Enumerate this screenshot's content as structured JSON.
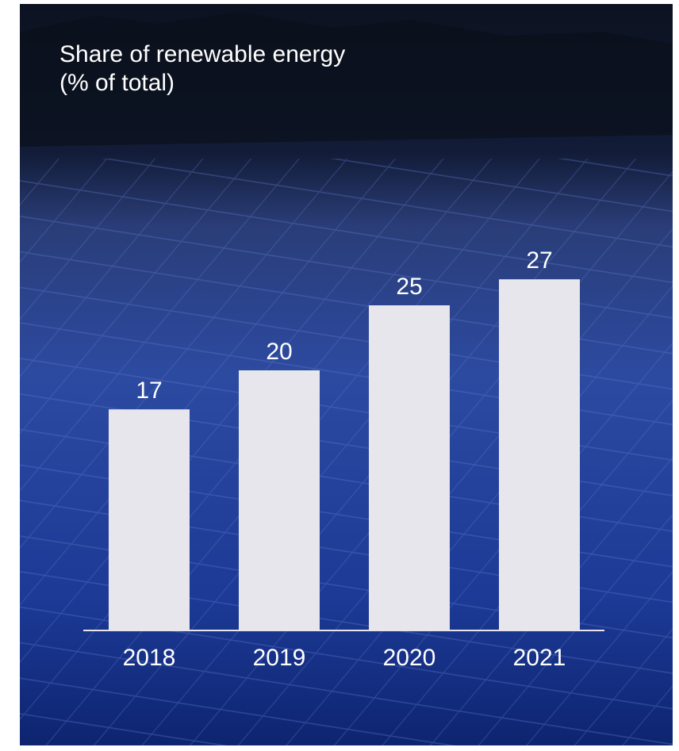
{
  "chart_data": {
    "type": "bar",
    "title": "Share of renewable energy",
    "subtitle": "(% of total)",
    "categories": [
      "2018",
      "2019",
      "2020",
      "2021"
    ],
    "values": [
      17,
      20,
      25,
      27
    ],
    "color": "#e6e6ec"
  }
}
